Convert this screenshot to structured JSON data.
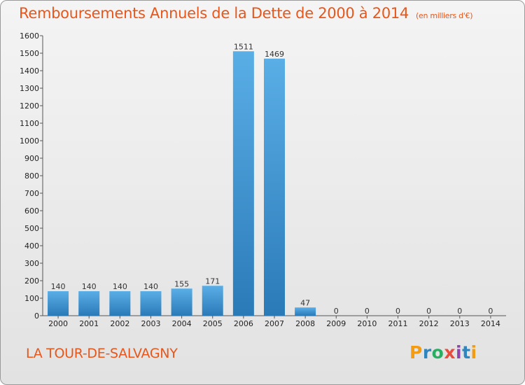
{
  "chart_data": {
    "type": "bar",
    "title": "Remboursements Annuels de la Dette de 2000 à 2014",
    "unit": "(en milliers d'€)",
    "categories": [
      "2000",
      "2001",
      "2002",
      "2003",
      "2004",
      "2005",
      "2006",
      "2007",
      "2008",
      "2009",
      "2010",
      "2011",
      "2012",
      "2013",
      "2014"
    ],
    "values": [
      140,
      140,
      140,
      140,
      155,
      171,
      1511,
      1469,
      47,
      0,
      0,
      0,
      0,
      0,
      0
    ],
    "ylim": [
      0,
      1600
    ],
    "yticks": [
      0,
      100,
      200,
      300,
      400,
      500,
      600,
      700,
      800,
      900,
      1000,
      1100,
      1200,
      1300,
      1400,
      1500,
      1600
    ],
    "grid": false,
    "bar_color_light": "#5aaee6",
    "bar_color_dark": "#2a7ab8"
  },
  "location": "LA TOUR-DE-SALVAGNY",
  "logo": {
    "letters": [
      "P",
      "r",
      "o",
      "x",
      "i",
      "t",
      "i"
    ],
    "colors": [
      "#f39c12",
      "#2e86c1",
      "#27ae60",
      "#e74c3c",
      "#8e44ad",
      "#2e86c1",
      "#f39c12"
    ]
  },
  "colors": {
    "accent": "#e8561a"
  }
}
